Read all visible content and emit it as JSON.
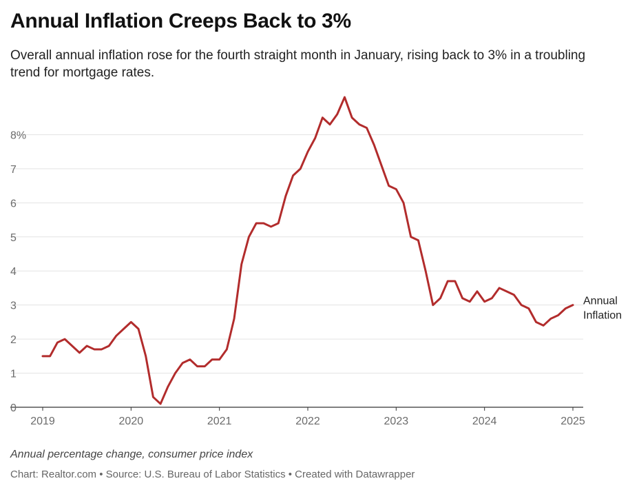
{
  "header": {
    "title": "Annual Inflation Creeps Back to 3%",
    "subtitle": "Overall annual inflation rose for the fourth straight month in January, rising back to 3% in a troubling trend for mortgage rates."
  },
  "footer": {
    "note": "Annual percentage change, consumer price index",
    "credits": "Chart: Realtor.com • Source: U.S. Bureau of Labor Statistics • Created with Datawrapper"
  },
  "chart_data": {
    "type": "line",
    "title": "Annual Inflation Creeps Back to 3%",
    "xlabel": "",
    "ylabel": "",
    "x_ticks": [
      "2019",
      "2020",
      "2021",
      "2022",
      "2023",
      "2024",
      "2025"
    ],
    "y_ticks": [
      {
        "value": 0,
        "label": "0"
      },
      {
        "value": 1,
        "label": "1"
      },
      {
        "value": 2,
        "label": "2"
      },
      {
        "value": 3,
        "label": "3"
      },
      {
        "value": 4,
        "label": "4"
      },
      {
        "value": 5,
        "label": "5"
      },
      {
        "value": 6,
        "label": "6"
      },
      {
        "value": 7,
        "label": "7"
      },
      {
        "value": 8,
        "label": "8%"
      }
    ],
    "xlim": [
      "2019-01",
      "2025-01"
    ],
    "ylim": [
      0,
      9
    ],
    "grid": "horizontal",
    "line_color": "#b22c2c",
    "series": [
      {
        "name": "Annual Inflation",
        "points": [
          {
            "x": "2019-01",
            "y": 1.5
          },
          {
            "x": "2019-02",
            "y": 1.5
          },
          {
            "x": "2019-03",
            "y": 1.9
          },
          {
            "x": "2019-04",
            "y": 2.0
          },
          {
            "x": "2019-05",
            "y": 1.8
          },
          {
            "x": "2019-06",
            "y": 1.6
          },
          {
            "x": "2019-07",
            "y": 1.8
          },
          {
            "x": "2019-08",
            "y": 1.7
          },
          {
            "x": "2019-09",
            "y": 1.7
          },
          {
            "x": "2019-10",
            "y": 1.8
          },
          {
            "x": "2019-11",
            "y": 2.1
          },
          {
            "x": "2019-12",
            "y": 2.3
          },
          {
            "x": "2020-01",
            "y": 2.5
          },
          {
            "x": "2020-02",
            "y": 2.3
          },
          {
            "x": "2020-03",
            "y": 1.5
          },
          {
            "x": "2020-04",
            "y": 0.3
          },
          {
            "x": "2020-05",
            "y": 0.1
          },
          {
            "x": "2020-06",
            "y": 0.6
          },
          {
            "x": "2020-07",
            "y": 1.0
          },
          {
            "x": "2020-08",
            "y": 1.3
          },
          {
            "x": "2020-09",
            "y": 1.4
          },
          {
            "x": "2020-10",
            "y": 1.2
          },
          {
            "x": "2020-11",
            "y": 1.2
          },
          {
            "x": "2020-12",
            "y": 1.4
          },
          {
            "x": "2021-01",
            "y": 1.4
          },
          {
            "x": "2021-02",
            "y": 1.7
          },
          {
            "x": "2021-03",
            "y": 2.6
          },
          {
            "x": "2021-04",
            "y": 4.2
          },
          {
            "x": "2021-05",
            "y": 5.0
          },
          {
            "x": "2021-06",
            "y": 5.4
          },
          {
            "x": "2021-07",
            "y": 5.4
          },
          {
            "x": "2021-08",
            "y": 5.3
          },
          {
            "x": "2021-09",
            "y": 5.4
          },
          {
            "x": "2021-10",
            "y": 6.2
          },
          {
            "x": "2021-11",
            "y": 6.8
          },
          {
            "x": "2021-12",
            "y": 7.0
          },
          {
            "x": "2022-01",
            "y": 7.5
          },
          {
            "x": "2022-02",
            "y": 7.9
          },
          {
            "x": "2022-03",
            "y": 8.5
          },
          {
            "x": "2022-04",
            "y": 8.3
          },
          {
            "x": "2022-05",
            "y": 8.6
          },
          {
            "x": "2022-06",
            "y": 9.1
          },
          {
            "x": "2022-07",
            "y": 8.5
          },
          {
            "x": "2022-08",
            "y": 8.3
          },
          {
            "x": "2022-09",
            "y": 8.2
          },
          {
            "x": "2022-10",
            "y": 7.7
          },
          {
            "x": "2022-11",
            "y": 7.1
          },
          {
            "x": "2022-12",
            "y": 6.5
          },
          {
            "x": "2023-01",
            "y": 6.4
          },
          {
            "x": "2023-02",
            "y": 6.0
          },
          {
            "x": "2023-03",
            "y": 5.0
          },
          {
            "x": "2023-04",
            "y": 4.9
          },
          {
            "x": "2023-05",
            "y": 4.0
          },
          {
            "x": "2023-06",
            "y": 3.0
          },
          {
            "x": "2023-07",
            "y": 3.2
          },
          {
            "x": "2023-08",
            "y": 3.7
          },
          {
            "x": "2023-09",
            "y": 3.7
          },
          {
            "x": "2023-10",
            "y": 3.2
          },
          {
            "x": "2023-11",
            "y": 3.1
          },
          {
            "x": "2023-12",
            "y": 3.4
          },
          {
            "x": "2024-01",
            "y": 3.1
          },
          {
            "x": "2024-02",
            "y": 3.2
          },
          {
            "x": "2024-03",
            "y": 3.5
          },
          {
            "x": "2024-04",
            "y": 3.4
          },
          {
            "x": "2024-05",
            "y": 3.3
          },
          {
            "x": "2024-06",
            "y": 3.0
          },
          {
            "x": "2024-07",
            "y": 2.9
          },
          {
            "x": "2024-08",
            "y": 2.5
          },
          {
            "x": "2024-09",
            "y": 2.4
          },
          {
            "x": "2024-10",
            "y": 2.6
          },
          {
            "x": "2024-11",
            "y": 2.7
          },
          {
            "x": "2024-12",
            "y": 2.9
          },
          {
            "x": "2025-01",
            "y": 3.0
          }
        ]
      }
    ]
  }
}
